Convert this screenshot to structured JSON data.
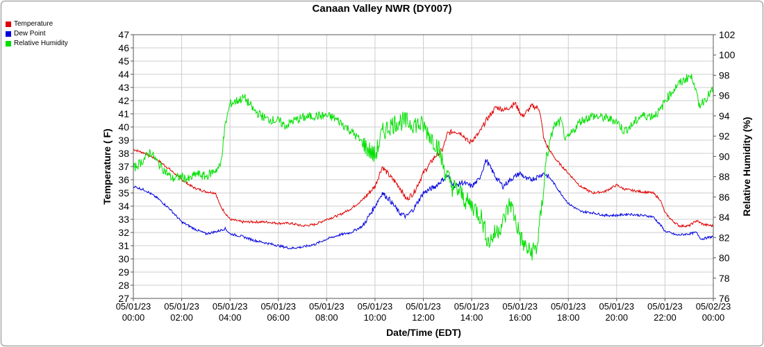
{
  "title": "Canaan Valley NWR (DY007)",
  "legend": [
    {
      "name": "Temperature",
      "color": "#e00000"
    },
    {
      "name": "Dew Point",
      "color": "#0000e0"
    },
    {
      "name": "Relative Humidity",
      "color": "#00e000"
    }
  ],
  "chart_data": {
    "type": "line",
    "title": "Canaan Valley NWR (DY007)",
    "xlabel": "Date/Time (EDT)",
    "ylabel": "Temperature ( F)",
    "y2label": "Relative Humidity (%)",
    "xlim": [
      0,
      24
    ],
    "ylim": [
      27,
      47
    ],
    "y2lim": [
      76,
      102
    ],
    "xticks": [
      {
        "x": 0,
        "date": "05/01/23",
        "time": "00:00"
      },
      {
        "x": 2,
        "date": "05/01/23",
        "time": "02:00"
      },
      {
        "x": 4,
        "date": "05/01/23",
        "time": "04:00"
      },
      {
        "x": 6,
        "date": "05/01/23",
        "time": "06:00"
      },
      {
        "x": 8,
        "date": "05/01/23",
        "time": "08:00"
      },
      {
        "x": 10,
        "date": "05/01/23",
        "time": "10:00"
      },
      {
        "x": 12,
        "date": "05/01/23",
        "time": "12:00"
      },
      {
        "x": 14,
        "date": "05/01/23",
        "time": "14:00"
      },
      {
        "x": 16,
        "date": "05/01/23",
        "time": "16:00"
      },
      {
        "x": 18,
        "date": "05/01/23",
        "time": "18:00"
      },
      {
        "x": 20,
        "date": "05/01/23",
        "time": "20:00"
      },
      {
        "x": 22,
        "date": "05/01/23",
        "time": "22:00"
      },
      {
        "x": 24,
        "date": "05/02/23",
        "time": "00:00"
      }
    ],
    "yticks": [
      27,
      28,
      29,
      30,
      31,
      32,
      33,
      34,
      35,
      36,
      37,
      38,
      39,
      40,
      41,
      42,
      43,
      44,
      45,
      46,
      47
    ],
    "y2ticks": [
      76,
      78,
      80,
      82,
      84,
      86,
      88,
      90,
      92,
      94,
      96,
      98,
      100,
      102
    ],
    "grid": true,
    "legend_position": "top-left",
    "series": [
      {
        "name": "Temperature",
        "axis": "left",
        "color": "#e00000",
        "points": [
          [
            0,
            38.3
          ],
          [
            0.5,
            38.0
          ],
          [
            1,
            37.5
          ],
          [
            1.5,
            36.8
          ],
          [
            2,
            36.0
          ],
          [
            2.5,
            35.4
          ],
          [
            3,
            35.1
          ],
          [
            3.4,
            35.0
          ],
          [
            3.6,
            34.0
          ],
          [
            4,
            33.0
          ],
          [
            4.5,
            32.8
          ],
          [
            5,
            32.8
          ],
          [
            5.5,
            32.8
          ],
          [
            6,
            32.7
          ],
          [
            6.5,
            32.7
          ],
          [
            7,
            32.5
          ],
          [
            7.5,
            32.6
          ],
          [
            8,
            33.0
          ],
          [
            8.5,
            33.3
          ],
          [
            9,
            33.8
          ],
          [
            9.5,
            34.5
          ],
          [
            10,
            35.5
          ],
          [
            10.3,
            37.0
          ],
          [
            10.6,
            36.3
          ],
          [
            11,
            35.5
          ],
          [
            11.3,
            34.5
          ],
          [
            11.6,
            35.0
          ],
          [
            12,
            36.5
          ],
          [
            12.5,
            37.8
          ],
          [
            12.8,
            38.3
          ],
          [
            13,
            39.5
          ],
          [
            13.3,
            39.7
          ],
          [
            13.6,
            39.5
          ],
          [
            13.9,
            38.8
          ],
          [
            14.3,
            39.5
          ],
          [
            14.6,
            40.5
          ],
          [
            15,
            41.5
          ],
          [
            15.4,
            41.3
          ],
          [
            15.8,
            41.8
          ],
          [
            16.1,
            40.8
          ],
          [
            16.5,
            41.6
          ],
          [
            16.8,
            41.4
          ],
          [
            17,
            39.0
          ],
          [
            17.2,
            38.3
          ],
          [
            17.5,
            37.5
          ],
          [
            18,
            36.5
          ],
          [
            18.5,
            35.5
          ],
          [
            19,
            35.0
          ],
          [
            19.5,
            35.1
          ],
          [
            20,
            35.6
          ],
          [
            20.3,
            35.3
          ],
          [
            20.6,
            35.2
          ],
          [
            21,
            35.1
          ],
          [
            21.5,
            35.0
          ],
          [
            21.8,
            34.5
          ],
          [
            22,
            33.5
          ],
          [
            22.3,
            32.9
          ],
          [
            22.6,
            32.5
          ],
          [
            23,
            32.5
          ],
          [
            23.3,
            32.9
          ],
          [
            23.6,
            32.6
          ],
          [
            24,
            32.5
          ]
        ]
      },
      {
        "name": "Dew Point",
        "axis": "left",
        "color": "#0000e0",
        "points": [
          [
            0,
            35.5
          ],
          [
            0.5,
            35.2
          ],
          [
            1,
            34.6
          ],
          [
            1.5,
            33.8
          ],
          [
            2,
            32.8
          ],
          [
            2.5,
            32.3
          ],
          [
            3,
            31.9
          ],
          [
            3.5,
            32.1
          ],
          [
            3.8,
            32.3
          ],
          [
            4,
            31.9
          ],
          [
            4.5,
            31.7
          ],
          [
            5,
            31.4
          ],
          [
            5.5,
            31.2
          ],
          [
            6,
            31.0
          ],
          [
            6.5,
            30.8
          ],
          [
            7,
            30.9
          ],
          [
            7.5,
            31.1
          ],
          [
            8,
            31.5
          ],
          [
            8.5,
            31.8
          ],
          [
            9,
            32.0
          ],
          [
            9.5,
            32.5
          ],
          [
            10,
            34.0
          ],
          [
            10.3,
            35.0
          ],
          [
            10.6,
            34.5
          ],
          [
            11,
            33.5
          ],
          [
            11.3,
            33.2
          ],
          [
            11.6,
            33.8
          ],
          [
            12,
            35.0
          ],
          [
            12.5,
            35.5
          ],
          [
            12.8,
            36.0
          ],
          [
            13,
            36.3
          ],
          [
            13.3,
            35.5
          ],
          [
            13.6,
            35.8
          ],
          [
            14,
            35.5
          ],
          [
            14.3,
            36.0
          ],
          [
            14.6,
            37.5
          ],
          [
            15,
            36.2
          ],
          [
            15.3,
            35.5
          ],
          [
            15.6,
            36.0
          ],
          [
            16,
            36.5
          ],
          [
            16.3,
            36.0
          ],
          [
            16.6,
            36.1
          ],
          [
            17,
            36.5
          ],
          [
            17.3,
            36.0
          ],
          [
            17.6,
            35.2
          ],
          [
            18,
            34.2
          ],
          [
            18.5,
            33.6
          ],
          [
            19,
            33.5
          ],
          [
            19.5,
            33.3
          ],
          [
            20,
            33.3
          ],
          [
            20.5,
            33.4
          ],
          [
            21,
            33.3
          ],
          [
            21.5,
            33.2
          ],
          [
            21.8,
            32.6
          ],
          [
            22,
            32.1
          ],
          [
            22.5,
            31.8
          ],
          [
            23,
            31.9
          ],
          [
            23.3,
            32.0
          ],
          [
            23.5,
            31.5
          ],
          [
            24,
            31.7
          ]
        ]
      },
      {
        "name": "Relative Humidity",
        "axis": "right",
        "color": "#00e000",
        "points": [
          [
            0,
            88.8
          ],
          [
            0.4,
            89.6
          ],
          [
            0.7,
            90.5
          ],
          [
            1,
            89.4
          ],
          [
            1.3,
            88.6
          ],
          [
            1.6,
            87.8
          ],
          [
            2,
            88.0
          ],
          [
            2.3,
            87.7
          ],
          [
            2.6,
            88.3
          ],
          [
            3,
            88.0
          ],
          [
            3.3,
            88.5
          ],
          [
            3.6,
            89.0
          ],
          [
            3.8,
            93.0
          ],
          [
            4,
            95.2
          ],
          [
            4.3,
            95.5
          ],
          [
            4.6,
            95.8
          ],
          [
            5,
            94.5
          ],
          [
            5.5,
            93.7
          ],
          [
            6,
            93.5
          ],
          [
            6.3,
            93.0
          ],
          [
            6.6,
            93.5
          ],
          [
            7,
            93.8
          ],
          [
            7.5,
            94.0
          ],
          [
            8,
            94.0
          ],
          [
            8.3,
            93.8
          ],
          [
            8.6,
            93.3
          ],
          [
            9,
            92.5
          ],
          [
            9.3,
            91.8
          ],
          [
            9.6,
            91.0
          ],
          [
            10,
            90.0
          ],
          [
            10.3,
            92.3
          ],
          [
            10.6,
            93.0
          ],
          [
            11,
            93.5
          ],
          [
            11.5,
            93.3
          ],
          [
            12,
            93.0
          ],
          [
            12.3,
            92.0
          ],
          [
            12.6,
            91.0
          ],
          [
            12.9,
            88.5
          ],
          [
            13.2,
            87.0
          ],
          [
            13.5,
            86.5
          ],
          [
            13.8,
            85.5
          ],
          [
            14.1,
            85.0
          ],
          [
            14.4,
            84.0
          ],
          [
            14.7,
            81.5
          ],
          [
            15,
            82.5
          ],
          [
            15.3,
            83.5
          ],
          [
            15.6,
            85.5
          ],
          [
            15.9,
            83.0
          ],
          [
            16.1,
            81.5
          ],
          [
            16.4,
            80.5
          ],
          [
            16.7,
            81.0
          ],
          [
            16.9,
            85.0
          ],
          [
            17.1,
            90.0
          ],
          [
            17.4,
            93.0
          ],
          [
            17.7,
            93.5
          ],
          [
            17.9,
            91.5
          ],
          [
            18.2,
            92.5
          ],
          [
            18.5,
            93.5
          ],
          [
            19,
            94.0
          ],
          [
            19.5,
            93.8
          ],
          [
            20,
            93.5
          ],
          [
            20.3,
            92.5
          ],
          [
            20.6,
            93.0
          ],
          [
            21,
            94.0
          ],
          [
            21.5,
            94.0
          ],
          [
            21.8,
            94.5
          ],
          [
            22,
            95.5
          ],
          [
            22.5,
            97.0
          ],
          [
            23,
            97.9
          ],
          [
            23.2,
            97.5
          ],
          [
            23.4,
            95.0
          ],
          [
            23.6,
            95.5
          ],
          [
            24,
            96.6
          ]
        ]
      }
    ]
  }
}
